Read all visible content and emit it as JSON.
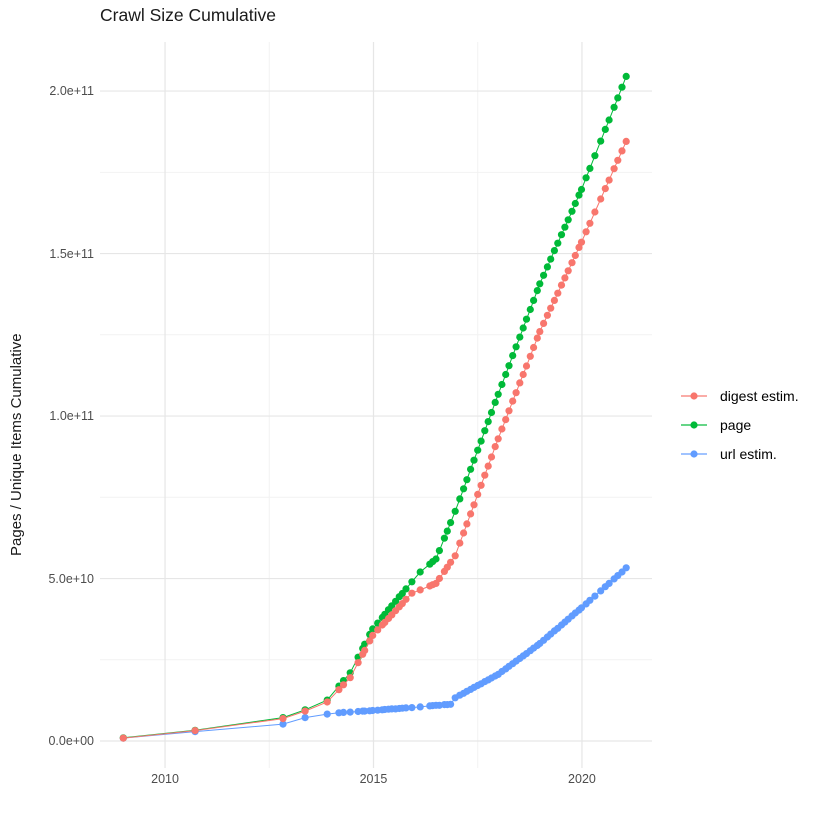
{
  "title": "Crawl Size Cumulative",
  "y_axis_title": "Pages / Unique Items Cumulative",
  "legend": {
    "items": [
      {
        "label": "digest estim.",
        "color": "#F8766D"
      },
      {
        "label": "page",
        "color": "#00BA38"
      },
      {
        "label": "url estim.",
        "color": "#619CFF"
      }
    ]
  },
  "chart_data": {
    "type": "scatter",
    "title": "Crawl Size Cumulative",
    "xlabel": "",
    "ylabel": "Pages / Unique Items Cumulative",
    "values_unit": "pages, billions (1e9)",
    "x_range": [
      2008.44,
      2021.68
    ],
    "y_range_e9": [
      -8.3,
      215.1
    ],
    "grid": true,
    "legend_position": "right",
    "x_ticks": [
      {
        "value": 2010,
        "label": "2010"
      },
      {
        "value": 2015,
        "label": "2015"
      },
      {
        "value": 2020,
        "label": "2020"
      }
    ],
    "x_minor_ticks": [
      2012.5,
      2017.5
    ],
    "y_ticks": [
      {
        "value_e9": 0,
        "label": "0.0e+00"
      },
      {
        "value_e9": 50,
        "label": "5.0e+10"
      },
      {
        "value_e9": 100,
        "label": "1.0e+11"
      },
      {
        "value_e9": 150,
        "label": "1.5e+11"
      },
      {
        "value_e9": 200,
        "label": "2.0e+11"
      }
    ],
    "y_minor_ticks_e9": [
      25,
      75,
      125,
      175
    ],
    "series": [
      {
        "name": "digest estim.",
        "color": "#F8766D",
        "points": [
          [
            2009.0,
            0.9
          ],
          [
            2010.72,
            3.2
          ],
          [
            2012.83,
            6.9
          ],
          [
            2013.36,
            9.2
          ],
          [
            2013.89,
            12.0
          ],
          [
            2014.17,
            15.8
          ],
          [
            2014.28,
            17.3
          ],
          [
            2014.44,
            19.5
          ],
          [
            2014.63,
            24.1
          ],
          [
            2014.74,
            26.7
          ],
          [
            2014.79,
            27.9
          ],
          [
            2014.91,
            30.8
          ],
          [
            2014.98,
            32.5
          ],
          [
            2015.1,
            34.2
          ],
          [
            2015.21,
            35.7
          ],
          [
            2015.27,
            36.5
          ],
          [
            2015.36,
            37.7
          ],
          [
            2015.44,
            38.8
          ],
          [
            2015.53,
            40.1
          ],
          [
            2015.62,
            41.3
          ],
          [
            2015.69,
            42.3
          ],
          [
            2015.78,
            43.6
          ],
          [
            2015.92,
            45.5
          ],
          [
            2016.12,
            46.5
          ],
          [
            2016.35,
            47.7
          ],
          [
            2016.42,
            48.1
          ],
          [
            2016.5,
            48.5
          ],
          [
            2016.58,
            50.0
          ],
          [
            2016.7,
            52.2
          ],
          [
            2016.77,
            53.5
          ],
          [
            2016.85,
            55.0
          ],
          [
            2016.96,
            57.0
          ],
          [
            2017.07,
            60.9
          ],
          [
            2017.16,
            64.0
          ],
          [
            2017.24,
            66.8
          ],
          [
            2017.33,
            69.9
          ],
          [
            2017.41,
            72.7
          ],
          [
            2017.5,
            75.9
          ],
          [
            2017.58,
            78.7
          ],
          [
            2017.67,
            81.8
          ],
          [
            2017.75,
            84.6
          ],
          [
            2017.83,
            87.4
          ],
          [
            2017.92,
            90.6
          ],
          [
            2017.99,
            93.0
          ],
          [
            2018.08,
            96.0
          ],
          [
            2018.17,
            98.9
          ],
          [
            2018.25,
            101.6
          ],
          [
            2018.34,
            104.6
          ],
          [
            2018.42,
            107.2
          ],
          [
            2018.51,
            110.2
          ],
          [
            2018.59,
            112.8
          ],
          [
            2018.67,
            115.4
          ],
          [
            2018.76,
            118.4
          ],
          [
            2018.84,
            121.1
          ],
          [
            2018.93,
            124.0
          ],
          [
            2018.99,
            126.0
          ],
          [
            2019.08,
            128.5
          ],
          [
            2019.17,
            131.0
          ],
          [
            2019.25,
            133.2
          ],
          [
            2019.34,
            135.6
          ],
          [
            2019.42,
            137.8
          ],
          [
            2019.51,
            140.3
          ],
          [
            2019.59,
            142.5
          ],
          [
            2019.67,
            144.7
          ],
          [
            2019.76,
            147.2
          ],
          [
            2019.84,
            149.4
          ],
          [
            2019.93,
            151.9
          ],
          [
            2019.99,
            153.5
          ],
          [
            2020.1,
            156.7
          ],
          [
            2020.19,
            159.3
          ],
          [
            2020.31,
            162.8
          ],
          [
            2020.45,
            166.8
          ],
          [
            2020.56,
            170.0
          ],
          [
            2020.65,
            172.6
          ],
          [
            2020.77,
            176.1
          ],
          [
            2020.86,
            178.7
          ],
          [
            2020.96,
            181.6
          ],
          [
            2021.06,
            184.5
          ]
        ]
      },
      {
        "name": "page",
        "color": "#00BA38",
        "points": [
          [
            2009.0,
            1.0
          ],
          [
            2010.72,
            3.3
          ],
          [
            2012.83,
            7.2
          ],
          [
            2013.36,
            9.6
          ],
          [
            2013.89,
            12.6
          ],
          [
            2014.17,
            16.9
          ],
          [
            2014.28,
            18.6
          ],
          [
            2014.44,
            21.0
          ],
          [
            2014.63,
            25.8
          ],
          [
            2014.74,
            28.5
          ],
          [
            2014.79,
            29.8
          ],
          [
            2014.91,
            32.8
          ],
          [
            2014.98,
            34.5
          ],
          [
            2015.1,
            36.3
          ],
          [
            2015.21,
            38.0
          ],
          [
            2015.27,
            39.0
          ],
          [
            2015.36,
            40.4
          ],
          [
            2015.44,
            41.6
          ],
          [
            2015.53,
            43.0
          ],
          [
            2015.62,
            44.4
          ],
          [
            2015.69,
            45.4
          ],
          [
            2015.78,
            46.8
          ],
          [
            2015.92,
            49.0
          ],
          [
            2016.12,
            52.0
          ],
          [
            2016.35,
            54.4
          ],
          [
            2016.42,
            55.2
          ],
          [
            2016.5,
            56.0
          ],
          [
            2016.58,
            58.6
          ],
          [
            2016.7,
            62.4
          ],
          [
            2016.77,
            64.6
          ],
          [
            2016.85,
            67.2
          ],
          [
            2016.96,
            70.7
          ],
          [
            2017.07,
            74.5
          ],
          [
            2017.16,
            77.6
          ],
          [
            2017.24,
            80.4
          ],
          [
            2017.33,
            83.6
          ],
          [
            2017.41,
            86.4
          ],
          [
            2017.5,
            89.5
          ],
          [
            2017.58,
            92.3
          ],
          [
            2017.67,
            95.5
          ],
          [
            2017.75,
            98.3
          ],
          [
            2017.83,
            101.1
          ],
          [
            2017.92,
            104.2
          ],
          [
            2017.99,
            106.7
          ],
          [
            2018.08,
            109.7
          ],
          [
            2018.17,
            112.8
          ],
          [
            2018.25,
            115.5
          ],
          [
            2018.34,
            118.6
          ],
          [
            2018.42,
            121.3
          ],
          [
            2018.51,
            124.3
          ],
          [
            2018.59,
            127.1
          ],
          [
            2018.67,
            129.8
          ],
          [
            2018.76,
            132.8
          ],
          [
            2018.84,
            135.6
          ],
          [
            2018.93,
            138.6
          ],
          [
            2018.99,
            140.7
          ],
          [
            2019.08,
            143.3
          ],
          [
            2019.17,
            145.9
          ],
          [
            2019.25,
            148.3
          ],
          [
            2019.34,
            150.9
          ],
          [
            2019.42,
            153.2
          ],
          [
            2019.51,
            155.8
          ],
          [
            2019.59,
            158.1
          ],
          [
            2019.67,
            160.4
          ],
          [
            2019.76,
            163.0
          ],
          [
            2019.84,
            165.4
          ],
          [
            2019.93,
            168.0
          ],
          [
            2019.99,
            169.7
          ],
          [
            2020.1,
            173.3
          ],
          [
            2020.19,
            176.2
          ],
          [
            2020.31,
            180.1
          ],
          [
            2020.45,
            184.6
          ],
          [
            2020.56,
            188.2
          ],
          [
            2020.65,
            191.1
          ],
          [
            2020.77,
            195.0
          ],
          [
            2020.86,
            197.9
          ],
          [
            2020.96,
            201.2
          ],
          [
            2021.06,
            204.5
          ]
        ]
      },
      {
        "name": "url estim.",
        "color": "#619CFF",
        "points": [
          [
            2009.0,
            0.9
          ],
          [
            2010.72,
            2.9
          ],
          [
            2012.83,
            5.2
          ],
          [
            2013.36,
            7.2
          ],
          [
            2013.89,
            8.3
          ],
          [
            2014.17,
            8.7
          ],
          [
            2014.28,
            8.8
          ],
          [
            2014.44,
            8.9
          ],
          [
            2014.63,
            9.1
          ],
          [
            2014.74,
            9.2
          ],
          [
            2014.79,
            9.2
          ],
          [
            2014.91,
            9.3
          ],
          [
            2014.98,
            9.4
          ],
          [
            2015.1,
            9.5
          ],
          [
            2015.21,
            9.6
          ],
          [
            2015.27,
            9.7
          ],
          [
            2015.36,
            9.8
          ],
          [
            2015.44,
            9.9
          ],
          [
            2015.53,
            9.9
          ],
          [
            2015.62,
            10.0
          ],
          [
            2015.69,
            10.1
          ],
          [
            2015.78,
            10.2
          ],
          [
            2015.92,
            10.3
          ],
          [
            2016.12,
            10.5
          ],
          [
            2016.35,
            10.8
          ],
          [
            2016.42,
            10.9
          ],
          [
            2016.5,
            11.0
          ],
          [
            2016.58,
            11.0
          ],
          [
            2016.7,
            11.2
          ],
          [
            2016.77,
            11.2
          ],
          [
            2016.85,
            11.3
          ],
          [
            2016.96,
            13.3
          ],
          [
            2017.07,
            14.1
          ],
          [
            2017.16,
            14.7
          ],
          [
            2017.24,
            15.3
          ],
          [
            2017.33,
            15.9
          ],
          [
            2017.41,
            16.5
          ],
          [
            2017.5,
            17.1
          ],
          [
            2017.58,
            17.6
          ],
          [
            2017.67,
            18.3
          ],
          [
            2017.75,
            18.8
          ],
          [
            2017.83,
            19.4
          ],
          [
            2017.92,
            20.0
          ],
          [
            2017.99,
            20.5
          ],
          [
            2018.08,
            21.4
          ],
          [
            2018.17,
            22.2
          ],
          [
            2018.25,
            23.0
          ],
          [
            2018.34,
            23.8
          ],
          [
            2018.42,
            24.6
          ],
          [
            2018.51,
            25.4
          ],
          [
            2018.59,
            26.2
          ],
          [
            2018.67,
            26.9
          ],
          [
            2018.76,
            27.8
          ],
          [
            2018.84,
            28.6
          ],
          [
            2018.93,
            29.4
          ],
          [
            2018.99,
            30.0
          ],
          [
            2019.08,
            31.0
          ],
          [
            2019.17,
            32.0
          ],
          [
            2019.25,
            32.9
          ],
          [
            2019.34,
            33.9
          ],
          [
            2019.42,
            34.7
          ],
          [
            2019.51,
            35.7
          ],
          [
            2019.59,
            36.6
          ],
          [
            2019.67,
            37.5
          ],
          [
            2019.76,
            38.5
          ],
          [
            2019.84,
            39.4
          ],
          [
            2019.93,
            40.3
          ],
          [
            2019.99,
            41.0
          ],
          [
            2020.1,
            42.2
          ],
          [
            2020.19,
            43.3
          ],
          [
            2020.31,
            44.6
          ],
          [
            2020.45,
            46.2
          ],
          [
            2020.56,
            47.5
          ],
          [
            2020.65,
            48.5
          ],
          [
            2020.77,
            49.9
          ],
          [
            2020.86,
            50.9
          ],
          [
            2020.96,
            52.0
          ],
          [
            2021.06,
            53.3
          ]
        ]
      }
    ]
  }
}
